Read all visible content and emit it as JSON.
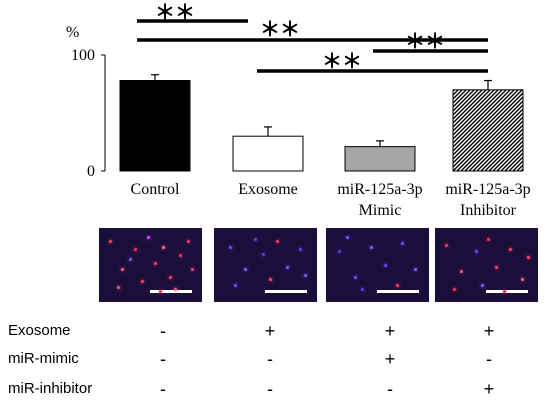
{
  "chart_data": {
    "type": "bar",
    "ylabel": "%",
    "ylim": [
      0,
      100
    ],
    "yticks": [
      0,
      100
    ],
    "categories": [
      {
        "line1": "Control",
        "line2": ""
      },
      {
        "line1": "Exosome",
        "line2": ""
      },
      {
        "line1": "miR-125a-3p",
        "line2": "Mimic"
      },
      {
        "line1": "miR-125a-3p",
        "line2": "Inhibitor"
      }
    ],
    "values": [
      78,
      30,
      21,
      70
    ],
    "errors": [
      5,
      8,
      5,
      8
    ],
    "bar_fills": [
      "#000000",
      "#ffffff",
      "#a6a6a6",
      "hatch"
    ],
    "significance": [
      {
        "from": 0,
        "to": 1,
        "label": "＊＊"
      },
      {
        "from": 0,
        "to": 3,
        "label": "＊＊"
      },
      {
        "from": 2,
        "to": 3,
        "label": "＊＊"
      },
      {
        "from": 1,
        "to": 3,
        "label": "＊＊"
      }
    ]
  },
  "micrographs": [
    {
      "name": "control"
    },
    {
      "name": "exosome"
    },
    {
      "name": "mimic"
    },
    {
      "name": "inhibitor"
    }
  ],
  "conditions": [
    {
      "label": "Exosome",
      "values": [
        "-",
        "+",
        "+",
        "+"
      ]
    },
    {
      "label": "miR-mimic",
      "values": [
        "-",
        "-",
        "+",
        "-"
      ]
    },
    {
      "label": "miR-inhibitor",
      "values": [
        "-",
        "-",
        "-",
        "+"
      ]
    }
  ]
}
